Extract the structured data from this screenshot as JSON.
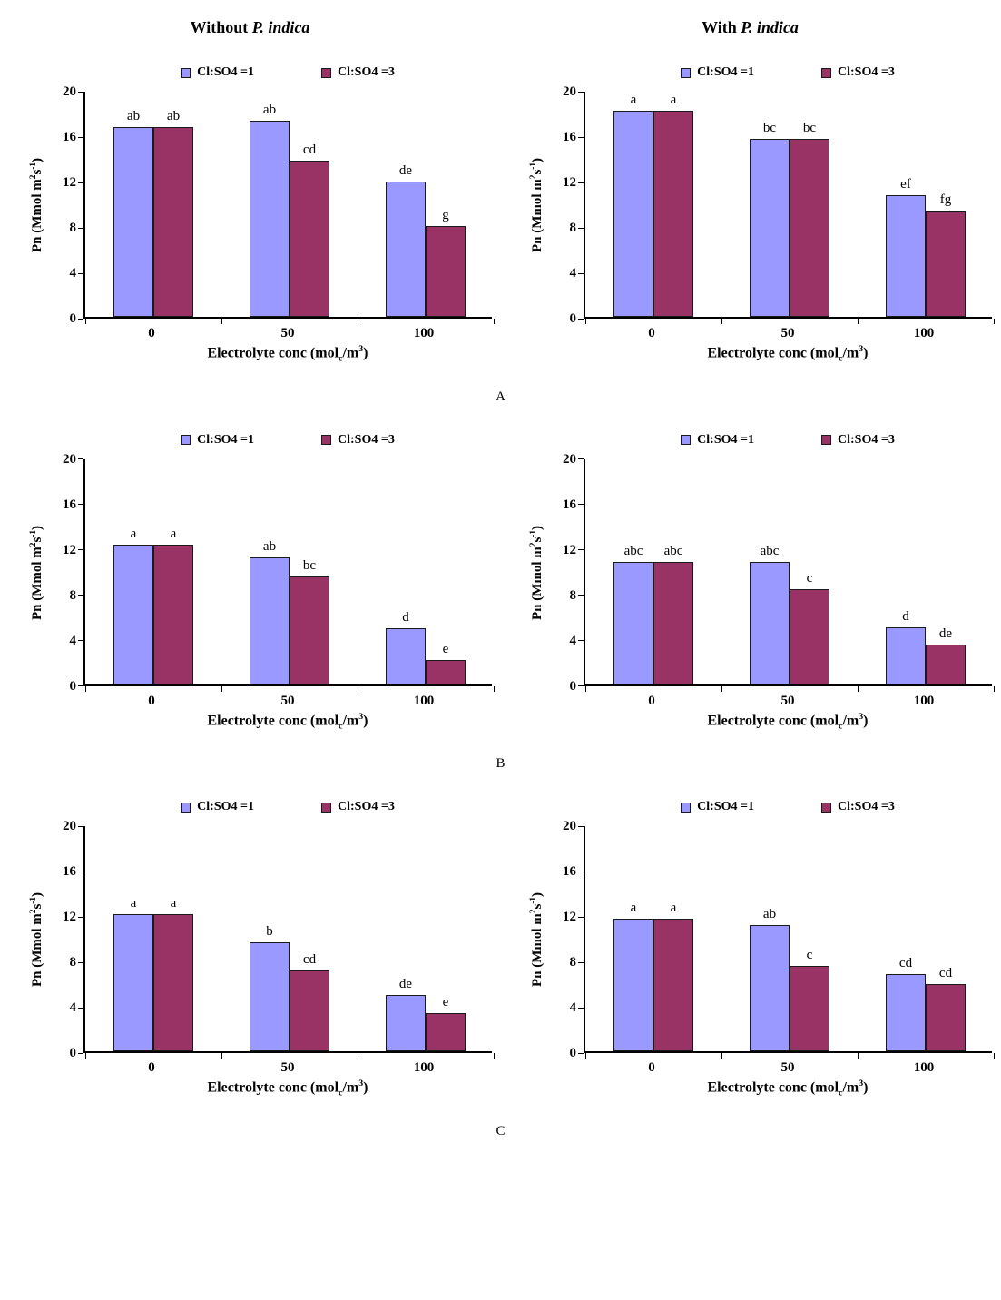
{
  "page": {
    "column_headers": [
      {
        "prefix": "Without ",
        "species": "P. indica"
      },
      {
        "prefix": "With ",
        "species": "P. indica"
      }
    ],
    "panel_labels": [
      "A",
      "B",
      "C"
    ]
  },
  "colors": {
    "series1": "#9999FF",
    "series2": "#993366",
    "bar_border": "#1a1a1a",
    "axis": "#000000"
  },
  "chart_data": [
    {
      "type": "bar",
      "panel": "A",
      "condition": "Without P. indica",
      "categories": [
        "0",
        "50",
        "100"
      ],
      "series": [
        {
          "name": "Cl:SO4 =1",
          "color": "#9999FF",
          "values": [
            16.7,
            17.3,
            11.9
          ],
          "sig_labels": [
            "ab",
            "ab",
            "de"
          ]
        },
        {
          "name": "Cl:SO4 =3",
          "color": "#993366",
          "values": [
            16.7,
            13.8,
            8.0
          ],
          "sig_labels": [
            "ab",
            "cd",
            "g"
          ]
        }
      ],
      "xlabel": "Electrolyte conc (mol_{c}/m^{3})",
      "ylabel": "Pn (Mmol m^{2}s^{-1})",
      "ylim": [
        0,
        20
      ],
      "ytick_step": 4,
      "grid": false,
      "legend_position": "top"
    },
    {
      "type": "bar",
      "panel": "A",
      "condition": "With P. indica",
      "categories": [
        "0",
        "50",
        "100"
      ],
      "series": [
        {
          "name": "Cl:SO4 =1",
          "color": "#9999FF",
          "values": [
            18.2,
            15.7,
            10.7
          ],
          "sig_labels": [
            "a",
            "bc",
            "ef"
          ]
        },
        {
          "name": "Cl:SO4 =3",
          "color": "#993366",
          "values": [
            18.2,
            15.7,
            9.4
          ],
          "sig_labels": [
            "a",
            "bc",
            "fg"
          ]
        }
      ],
      "xlabel": "Electrolyte conc (mol_{c}/m^{3})",
      "ylabel": "Pn (Mmol m^{2}s^{-1})",
      "ylim": [
        0,
        20
      ],
      "ytick_step": 4,
      "grid": false,
      "legend_position": "top"
    },
    {
      "type": "bar",
      "panel": "B",
      "condition": "Without P. indica",
      "categories": [
        "0",
        "50",
        "100"
      ],
      "series": [
        {
          "name": "Cl:SO4 =1",
          "color": "#9999FF",
          "values": [
            12.3,
            11.2,
            4.9
          ],
          "sig_labels": [
            "a",
            "ab",
            "d"
          ]
        },
        {
          "name": "Cl:SO4 =3",
          "color": "#993366",
          "values": [
            12.3,
            9.5,
            2.1
          ],
          "sig_labels": [
            "a",
            "bc",
            "e"
          ]
        }
      ],
      "xlabel": "Electrolyte conc (mol_{c}/m^{3})",
      "ylabel": "Pn (Mmol m^{2}s^{-1})",
      "ylim": [
        0,
        20
      ],
      "ytick_step": 4,
      "grid": false,
      "legend_position": "top"
    },
    {
      "type": "bar",
      "panel": "B",
      "condition": "With P. indica",
      "categories": [
        "0",
        "50",
        "100"
      ],
      "series": [
        {
          "name": "Cl:SO4 =1",
          "color": "#9999FF",
          "values": [
            10.8,
            10.8,
            5.0
          ],
          "sig_labels": [
            "abc",
            "abc",
            "d"
          ]
        },
        {
          "name": "Cl:SO4 =3",
          "color": "#993366",
          "values": [
            10.8,
            8.4,
            3.5
          ],
          "sig_labels": [
            "abc",
            "c",
            "de"
          ]
        }
      ],
      "xlabel": "Electrolyte conc (mol_{c}/m^{3})",
      "ylabel": "Pn (Mmol m^{2}s^{-1})",
      "ylim": [
        0,
        20
      ],
      "ytick_step": 4,
      "grid": false,
      "legend_position": "top"
    },
    {
      "type": "bar",
      "panel": "C",
      "condition": "Without P. indica",
      "categories": [
        "0",
        "50",
        "100"
      ],
      "series": [
        {
          "name": "Cl:SO4 =1",
          "color": "#9999FF",
          "values": [
            12.1,
            9.6,
            5.0
          ],
          "sig_labels": [
            "a",
            "b",
            "de"
          ]
        },
        {
          "name": "Cl:SO4 =3",
          "color": "#993366",
          "values": [
            12.1,
            7.1,
            3.4
          ],
          "sig_labels": [
            "a",
            "cd",
            "e"
          ]
        }
      ],
      "xlabel": "Electrolyte conc (mol_{c}/m^{3})",
      "ylabel": "Pn (Mmol m^{2}s^{-1})",
      "ylim": [
        0,
        20
      ],
      "ytick_step": 4,
      "grid": false,
      "legend_position": "top"
    },
    {
      "type": "bar",
      "panel": "C",
      "condition": "With P. indica",
      "categories": [
        "0",
        "50",
        "100"
      ],
      "series": [
        {
          "name": "Cl:SO4 =1",
          "color": "#9999FF",
          "values": [
            11.7,
            11.1,
            6.8
          ],
          "sig_labels": [
            "a",
            "ab",
            "cd"
          ]
        },
        {
          "name": "Cl:SO4 =3",
          "color": "#993366",
          "values": [
            11.7,
            7.5,
            5.9
          ],
          "sig_labels": [
            "a",
            "c",
            "cd"
          ]
        }
      ],
      "xlabel": "Electrolyte conc (mol_{c}/m^{3})",
      "ylabel": "Pn (Mmol m^{2}s^{-1})",
      "ylim": [
        0,
        20
      ],
      "ytick_step": 4,
      "grid": false,
      "legend_position": "top"
    }
  ]
}
